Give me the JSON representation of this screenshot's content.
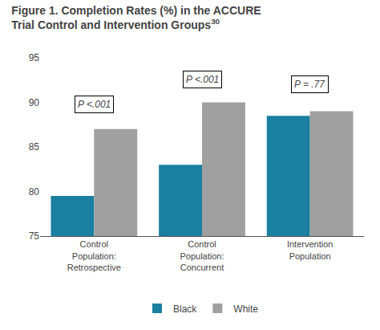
{
  "chart_data": {
    "type": "bar",
    "title": "Figure 1. Completion Rates (%) in the ACCURE\nTrial Control and Intervention Groups",
    "title_superscript": "30",
    "categories": [
      "Control\nPopulation:\nRetrospective",
      "Control\nPopulation:\nConcurrent",
      "Intervention\nPopulation"
    ],
    "series": [
      {
        "name": "Black",
        "color": "#1a7fa0",
        "values": [
          79.5,
          83.0,
          88.5
        ]
      },
      {
        "name": "White",
        "color": "#a0a0a0",
        "values": [
          87.0,
          90.0,
          89.0
        ]
      }
    ],
    "ylim": [
      75,
      95
    ],
    "yticks": [
      75,
      80,
      85,
      90,
      95
    ],
    "grid": false,
    "legend": "bottom",
    "annotations": [
      {
        "text": "P <.001",
        "category": "Control\nPopulation:\nRetrospective",
        "y": 88.8
      },
      {
        "text": "P <.001",
        "category": "Control\nPopulation:\nConcurrent",
        "y": 91.6
      },
      {
        "text": "P = .77",
        "category": "Intervention\nPopulation",
        "y": 91.0
      }
    ]
  }
}
